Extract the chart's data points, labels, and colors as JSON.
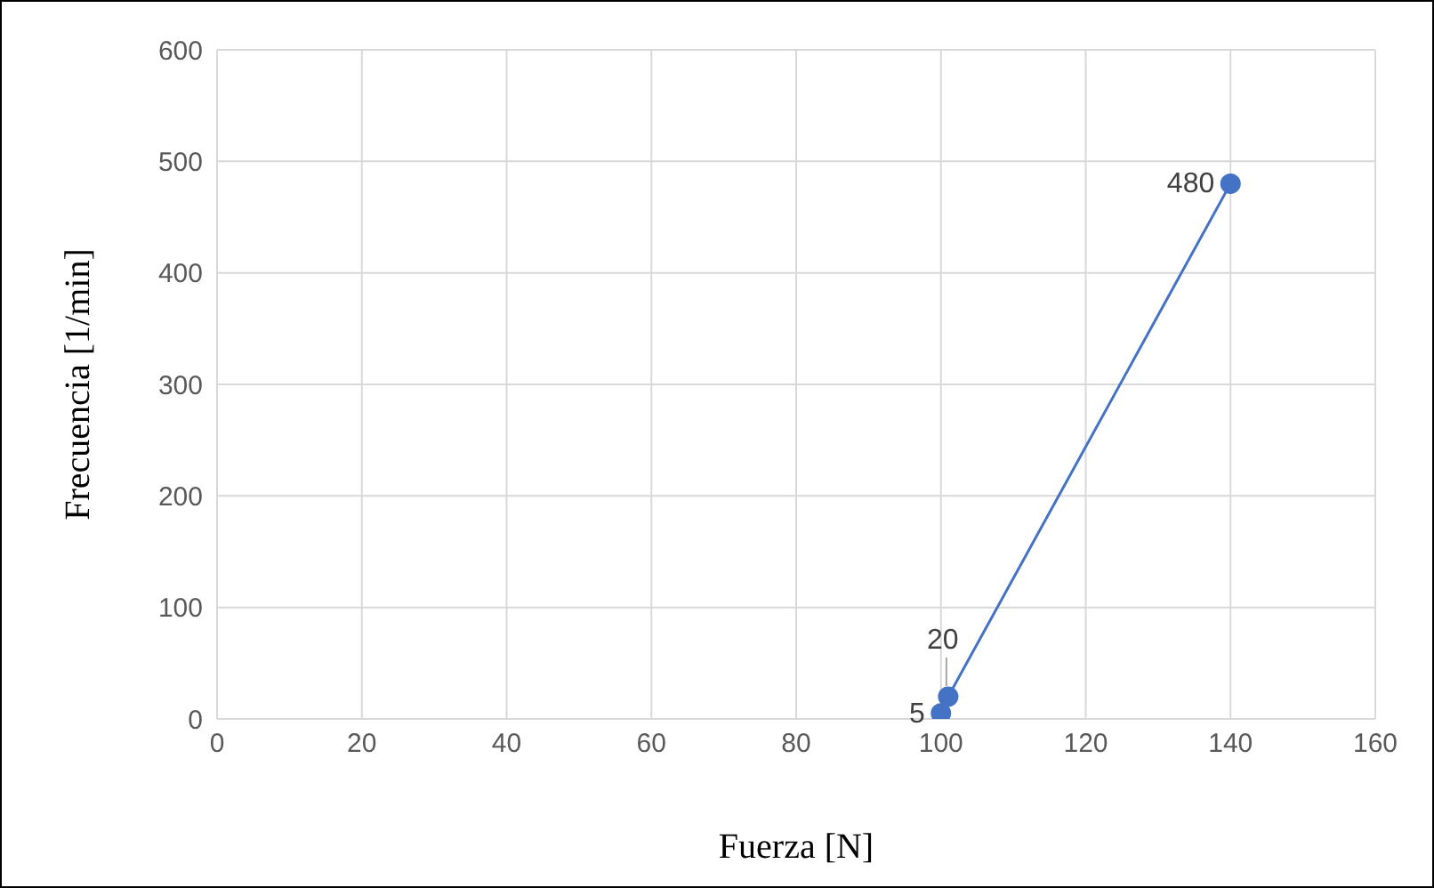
{
  "chart_data": {
    "type": "line",
    "xlabel": "Fuerza [N]",
    "ylabel": "Frecuencia [1/min]",
    "x": [
      100,
      101,
      140
    ],
    "series": [
      {
        "color": "#4472c4",
        "values": [
          5,
          20,
          480
        ]
      }
    ],
    "xlim": [
      0,
      160
    ],
    "xticks": [
      0,
      20,
      40,
      60,
      80,
      100,
      120,
      140,
      160
    ],
    "ylim": [
      0,
      600
    ],
    "yticks": [
      0,
      100,
      200,
      300,
      400,
      500,
      600
    ],
    "grid": true,
    "marker": "circle",
    "line_style": "solid",
    "data_labels": true,
    "legend": false
  }
}
